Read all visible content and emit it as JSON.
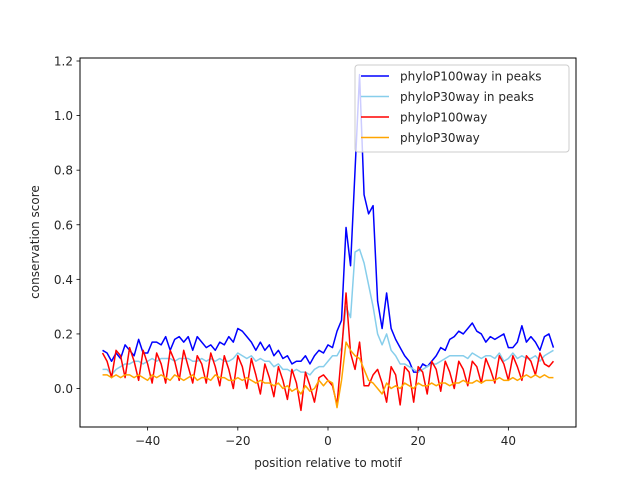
{
  "chart_data": {
    "type": "line",
    "title": "",
    "xlabel": "position relative to motif",
    "ylabel": "conservation score",
    "xlim": [
      -55,
      55
    ],
    "ylim": [
      -0.141,
      1.211
    ],
    "xticks": [
      -40,
      -20,
      0,
      20,
      40
    ],
    "xtick_labels": [
      "−40",
      "−20",
      "0",
      "20",
      "40"
    ],
    "yticks": [
      0.0,
      0.2,
      0.4,
      0.6,
      0.8,
      1.0,
      1.2
    ],
    "ytick_labels": [
      "0.0",
      "0.2",
      "0.4",
      "0.6",
      "0.8",
      "1.0",
      "1.2"
    ],
    "grid": false,
    "legend_position": "top-right",
    "x_start": -50,
    "x_end": 50,
    "series": [
      {
        "name": "phyloP100way in peaks",
        "color": "#0000ff",
        "values": [
          0.14,
          0.13,
          0.1,
          0.13,
          0.11,
          0.16,
          0.14,
          0.12,
          0.18,
          0.13,
          0.13,
          0.17,
          0.17,
          0.16,
          0.19,
          0.14,
          0.18,
          0.19,
          0.17,
          0.19,
          0.14,
          0.19,
          0.17,
          0.15,
          0.16,
          0.14,
          0.17,
          0.16,
          0.19,
          0.17,
          0.22,
          0.21,
          0.19,
          0.17,
          0.14,
          0.17,
          0.14,
          0.16,
          0.12,
          0.14,
          0.11,
          0.12,
          0.09,
          0.1,
          0.1,
          0.12,
          0.09,
          0.12,
          0.14,
          0.13,
          0.16,
          0.15,
          0.21,
          0.25,
          0.59,
          0.45,
          0.8,
          1.15,
          0.71,
          0.64,
          0.67,
          0.32,
          0.22,
          0.35,
          0.22,
          0.18,
          0.15,
          0.12,
          0.1,
          0.06,
          0.06,
          0.09,
          0.08,
          0.1,
          0.12,
          0.15,
          0.14,
          0.18,
          0.19,
          0.21,
          0.2,
          0.22,
          0.24,
          0.21,
          0.2,
          0.17,
          0.19,
          0.18,
          0.19,
          0.2,
          0.15,
          0.15,
          0.17,
          0.23,
          0.17,
          0.19,
          0.17,
          0.14,
          0.19,
          0.2,
          0.15
        ]
      },
      {
        "name": "phyloP30way in peaks",
        "color": "#87ceeb",
        "values": [
          0.07,
          0.07,
          0.05,
          0.07,
          0.08,
          0.09,
          0.09,
          0.1,
          0.1,
          0.09,
          0.1,
          0.11,
          0.1,
          0.11,
          0.11,
          0.11,
          0.1,
          0.11,
          0.11,
          0.11,
          0.1,
          0.1,
          0.11,
          0.1,
          0.11,
          0.1,
          0.11,
          0.1,
          0.1,
          0.11,
          0.13,
          0.12,
          0.11,
          0.12,
          0.1,
          0.11,
          0.1,
          0.1,
          0.08,
          0.09,
          0.07,
          0.07,
          0.06,
          0.07,
          0.06,
          0.06,
          0.05,
          0.07,
          0.08,
          0.08,
          0.1,
          0.12,
          0.12,
          0.15,
          0.3,
          0.26,
          0.5,
          0.51,
          0.46,
          0.38,
          0.3,
          0.2,
          0.16,
          0.2,
          0.14,
          0.12,
          0.09,
          0.09,
          0.08,
          0.07,
          0.06,
          0.07,
          0.08,
          0.09,
          0.09,
          0.1,
          0.11,
          0.12,
          0.12,
          0.12,
          0.12,
          0.11,
          0.13,
          0.12,
          0.11,
          0.12,
          0.12,
          0.11,
          0.13,
          0.1,
          0.11,
          0.13,
          0.11,
          0.12,
          0.11,
          0.11,
          0.12,
          0.1,
          0.12,
          0.13,
          0.14
        ]
      },
      {
        "name": "phyloP100way",
        "color": "#ff0000",
        "values": [
          0.13,
          0.1,
          0.04,
          0.14,
          0.12,
          0.04,
          0.15,
          0.1,
          0.03,
          0.14,
          0.09,
          0.02,
          0.13,
          0.09,
          0.02,
          0.14,
          0.1,
          0.03,
          0.14,
          0.08,
          0.02,
          0.12,
          0.09,
          0.02,
          0.13,
          0.08,
          0.01,
          0.12,
          0.07,
          0.0,
          0.12,
          0.08,
          0.0,
          0.11,
          0.05,
          -0.02,
          0.09,
          0.04,
          -0.03,
          0.08,
          0.03,
          -0.04,
          0.07,
          0.02,
          -0.08,
          0.06,
          0.01,
          -0.05,
          0.04,
          0.05,
          0.03,
          0.01,
          -0.06,
          0.13,
          0.35,
          0.13,
          0.07,
          0.17,
          0.01,
          0.01,
          0.05,
          0.07,
          0.02,
          -0.05,
          0.08,
          0.05,
          -0.06,
          0.08,
          0.06,
          -0.05,
          0.08,
          0.06,
          -0.02,
          0.1,
          0.07,
          -0.01,
          0.1,
          0.06,
          0.0,
          0.1,
          0.07,
          0.01,
          0.1,
          0.08,
          0.02,
          0.11,
          0.07,
          0.02,
          0.12,
          0.09,
          0.03,
          0.12,
          0.08,
          0.03,
          0.12,
          0.1,
          0.05,
          0.13,
          0.09,
          0.08,
          0.1
        ]
      },
      {
        "name": "phyloP30way",
        "color": "#ffa500",
        "values": [
          0.05,
          0.05,
          0.04,
          0.05,
          0.04,
          0.05,
          0.05,
          0.04,
          0.05,
          0.04,
          0.03,
          0.05,
          0.04,
          0.05,
          0.04,
          0.03,
          0.05,
          0.04,
          0.03,
          0.04,
          0.05,
          0.03,
          0.04,
          0.04,
          0.03,
          0.05,
          0.04,
          0.04,
          0.03,
          0.03,
          0.04,
          0.03,
          0.04,
          0.03,
          0.02,
          0.03,
          0.02,
          0.02,
          0.01,
          0.02,
          0.0,
          0.01,
          -0.01,
          0.0,
          -0.02,
          0.01,
          -0.01,
          0.0,
          0.03,
          0.01,
          0.03,
          0.02,
          -0.07,
          0.03,
          0.17,
          0.14,
          0.12,
          0.11,
          0.07,
          0.03,
          0.02,
          0.0,
          -0.02,
          0.02,
          0.0,
          0.01,
          0.0,
          0.02,
          0.01,
          0.0,
          0.02,
          0.01,
          0.01,
          0.02,
          0.01,
          0.02,
          0.02,
          0.01,
          0.02,
          0.02,
          0.03,
          0.02,
          0.02,
          0.03,
          0.02,
          0.03,
          0.03,
          0.03,
          0.04,
          0.03,
          0.03,
          0.04,
          0.03,
          0.04,
          0.05,
          0.04,
          0.05,
          0.04,
          0.05,
          0.04,
          0.04
        ]
      }
    ]
  }
}
